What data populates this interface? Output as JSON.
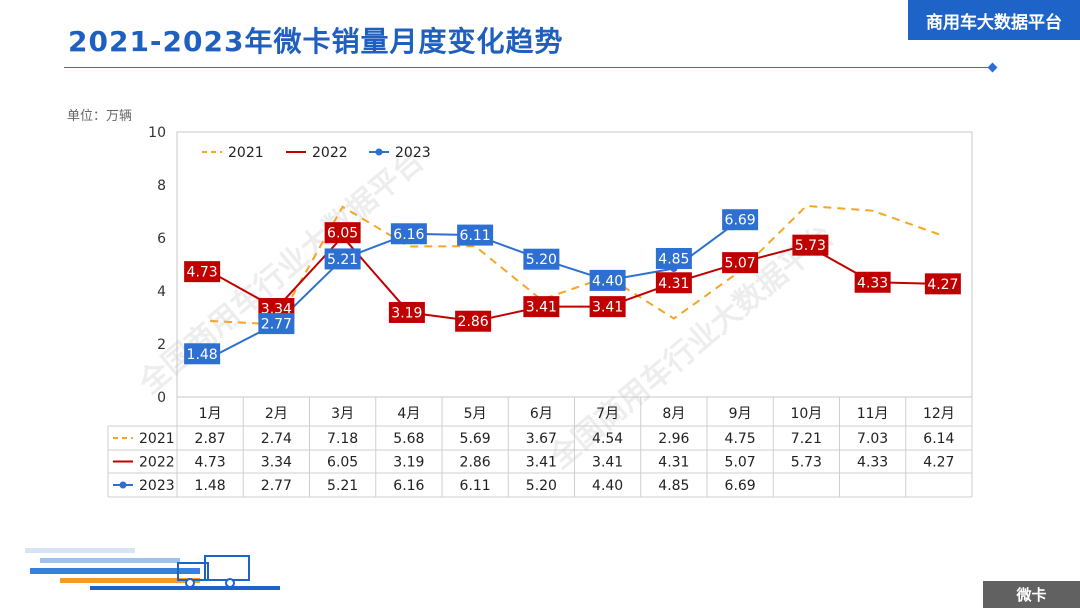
{
  "header": {
    "title": "2021-2023年微卡销量月度变化趋势",
    "brand": "商用车大数据平台",
    "unit": "单位：万辆"
  },
  "footer": {
    "badge": "微卡"
  },
  "watermark": "全国商用车行业大数据平台",
  "colors": {
    "title_blue": "#1f5fbf",
    "s2021": "#f5a623",
    "s2022": "#c00000",
    "s2023": "#2e6fd2",
    "brand_bg": "#1e63c8"
  },
  "chart_data": {
    "type": "line",
    "categories": [
      "1月",
      "2月",
      "3月",
      "4月",
      "5月",
      "6月",
      "7月",
      "8月",
      "9月",
      "10月",
      "11月",
      "12月"
    ],
    "ylim": [
      0,
      10
    ],
    "yticks": [
      0,
      2,
      4,
      6,
      8,
      10
    ],
    "legend_position": "top-left",
    "grid": false,
    "series": [
      {
        "name": "2021",
        "style": "dashed",
        "values": [
          2.87,
          2.74,
          7.18,
          5.68,
          5.69,
          3.67,
          4.54,
          2.96,
          4.75,
          7.21,
          7.03,
          6.14
        ],
        "labels_shown": false
      },
      {
        "name": "2022",
        "style": "solid",
        "values": [
          4.73,
          3.34,
          6.05,
          3.19,
          2.86,
          3.41,
          3.41,
          4.31,
          5.07,
          5.73,
          4.33,
          4.27
        ],
        "labels_shown": true
      },
      {
        "name": "2023",
        "style": "solid-marker",
        "values": [
          1.48,
          2.77,
          5.21,
          6.16,
          6.11,
          5.2,
          4.4,
          4.85,
          6.69,
          null,
          null,
          null
        ],
        "labels_shown": true
      }
    ],
    "table": {
      "rows": [
        {
          "name": "2021",
          "cells": [
            "2.87",
            "2.74",
            "7.18",
            "5.68",
            "5.69",
            "3.67",
            "4.54",
            "2.96",
            "4.75",
            "7.21",
            "7.03",
            "6.14"
          ]
        },
        {
          "name": "2022",
          "cells": [
            "4.73",
            "3.34",
            "6.05",
            "3.19",
            "2.86",
            "3.41",
            "3.41",
            "4.31",
            "5.07",
            "5.73",
            "4.33",
            "4.27"
          ]
        },
        {
          "name": "2023",
          "cells": [
            "1.48",
            "2.77",
            "5.21",
            "6.16",
            "6.11",
            "5.20",
            "4.40",
            "4.85",
            "6.69",
            "",
            "",
            ""
          ]
        }
      ]
    }
  }
}
